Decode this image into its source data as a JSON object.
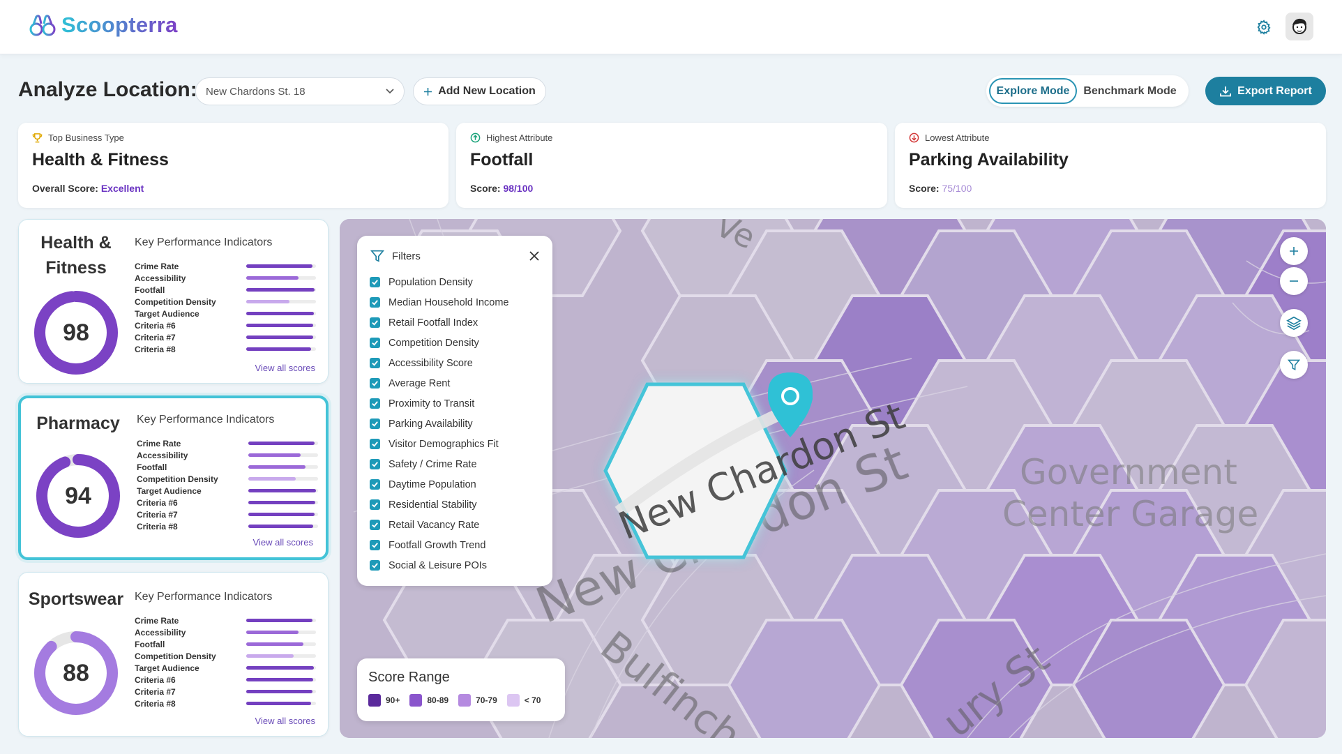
{
  "app": {
    "name": "Scoopterra"
  },
  "header": {
    "settings_icon": "gear-icon",
    "avatar_icon": "user-avatar-icon"
  },
  "toolbar": {
    "title": "Analyze Location:",
    "location_select": {
      "value": "New Chardons St. 18"
    },
    "add_location_label": "Add New Location",
    "modes": [
      {
        "label": "Explore Mode",
        "active": true
      },
      {
        "label": "Benchmark Mode",
        "active": false
      }
    ],
    "export_label": "Export Report"
  },
  "summary": [
    {
      "label": "Top Business Type",
      "value": "Health & Fitness",
      "score_label": "Overall Score:",
      "score_value": "Excellent",
      "icon": "trophy-icon"
    },
    {
      "label": "Highest Attribute",
      "value": "Footfall",
      "score_label": "Score:",
      "score_value": "98/100",
      "icon": "arrow-up-circle-icon"
    },
    {
      "label": "Lowest Attribute",
      "value": "Parking Availability",
      "score_label": "Score:",
      "score_value": "75/100",
      "icon": "arrow-down-circle-icon"
    }
  ],
  "business_cards": [
    {
      "name": "Health & Fitness",
      "score": "98",
      "score_fraction": 0.98,
      "kpi_title": "Key Performance Indicators",
      "kpis": [
        {
          "name": "Crime Rate",
          "value": 0.95
        },
        {
          "name": "Accessibility",
          "value": 0.75
        },
        {
          "name": "Footfall",
          "value": 0.98
        },
        {
          "name": "Competition Density",
          "value": 0.62
        },
        {
          "name": "Target Audience",
          "value": 0.97
        },
        {
          "name": "Criteria #6",
          "value": 0.96
        },
        {
          "name": "Criteria #7",
          "value": 0.96
        },
        {
          "name": "Criteria #8",
          "value": 0.93
        }
      ],
      "view_all": "View all scores"
    },
    {
      "name": "Pharmacy",
      "score": "94",
      "score_fraction": 0.94,
      "kpi_title": "Key Performance Indicators",
      "kpis": [
        {
          "name": "Crime Rate",
          "value": 0.95
        },
        {
          "name": "Accessibility",
          "value": 0.75
        },
        {
          "name": "Footfall",
          "value": 0.82
        },
        {
          "name": "Competition Density",
          "value": 0.68
        },
        {
          "name": "Target Audience",
          "value": 0.97
        },
        {
          "name": "Criteria #6",
          "value": 0.96
        },
        {
          "name": "Criteria #7",
          "value": 0.95
        },
        {
          "name": "Criteria #8",
          "value": 0.93
        }
      ],
      "view_all": "View all scores"
    },
    {
      "name": "Sportswear",
      "score": "88",
      "score_fraction": 0.88,
      "kpi_title": "Key Performance Indicators",
      "kpis": [
        {
          "name": "Crime Rate",
          "value": 0.95
        },
        {
          "name": "Accessibility",
          "value": 0.75
        },
        {
          "name": "Footfall",
          "value": 0.82
        },
        {
          "name": "Competition Density",
          "value": 0.68
        },
        {
          "name": "Target Audience",
          "value": 0.97
        },
        {
          "name": "Criteria #6",
          "value": 0.96
        },
        {
          "name": "Criteria #7",
          "value": 0.95
        },
        {
          "name": "Criteria #8",
          "value": 0.93
        }
      ],
      "view_all": "View all scores"
    }
  ],
  "filters": {
    "title": "Filters",
    "items": [
      "Population Density",
      "Median Household Income",
      "Retail Footfall Index",
      "Competition Density",
      "Accessibility Score",
      "Average Rent",
      "Proximity to Transit",
      "Parking Availability",
      "Visitor Demographics Fit",
      "Safety / Crime Rate",
      "Daytime Population",
      "Residential Stability",
      "Retail Vacancy Rate",
      "Footfall Growth Trend",
      "Social & Leisure POIs"
    ]
  },
  "map": {
    "labels": {
      "street_1": "New Chardon St",
      "street_2": "Bulfinch",
      "street_3": "ury St",
      "place_1_line1": "Government",
      "place_1_line2": "Center Garage",
      "street_4": "Ve"
    },
    "controls": [
      "zoom-in-icon",
      "zoom-out-icon",
      "layers-icon",
      "filter-icon"
    ]
  },
  "legend": {
    "title": "Score Range",
    "items": [
      {
        "label": "90+",
        "color": "#5b2a9c"
      },
      {
        "label": "80-89",
        "color": "#8a55cc"
      },
      {
        "label": "70-79",
        "color": "#b58ae0"
      },
      {
        "label": "< 70",
        "color": "#dcc6f2"
      }
    ]
  },
  "colors": {
    "accent": "#1d7f9f",
    "highlight": "#43c3d7",
    "purple": "#7a45c4"
  }
}
